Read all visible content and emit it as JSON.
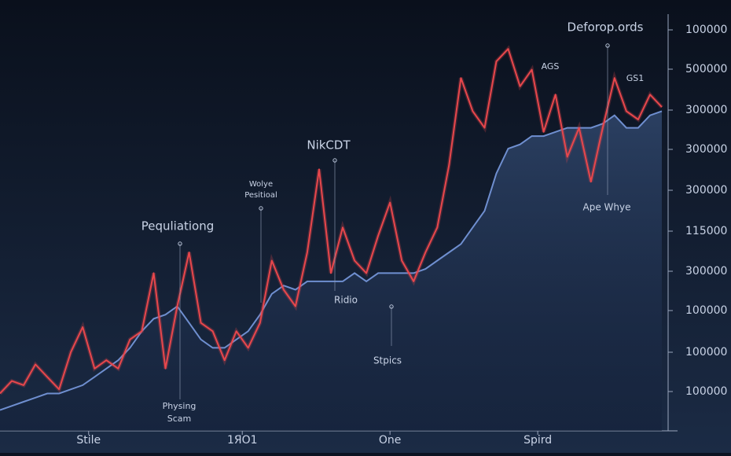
{
  "chart_data": {
    "type": "line",
    "annotations": [
      "Deforop.ords",
      "AGS",
      "GS1",
      "NikCDT",
      "Wolye",
      "Pesitioal",
      "Pequliationg",
      "Ape Whye",
      "Ridio",
      "Stpics",
      "Physing",
      "Scam"
    ],
    "y_axis_labels": [
      "100000",
      "500000",
      "300000",
      "300000",
      "300000",
      "115000",
      "300000",
      "100000",
      "100000",
      "100000"
    ],
    "x": [
      0,
      1,
      2,
      3,
      4,
      5,
      6,
      7,
      8,
      9,
      10,
      11,
      12,
      13,
      14,
      15,
      16,
      17,
      18,
      19,
      20,
      21,
      22,
      23,
      24,
      25,
      26,
      27,
      28,
      29,
      30,
      31,
      32,
      33,
      34,
      35,
      36,
      37,
      38,
      39,
      40,
      41,
      42,
      43,
      44,
      45,
      46,
      47,
      48,
      49,
      50,
      51,
      52,
      53,
      54,
      55,
      56
    ],
    "xlim": [
      0,
      56.4
    ],
    "ylim": [
      0,
      100
    ],
    "xticks": [
      {
        "value": 7.5,
        "label": "Stile"
      },
      {
        "value": 20.5,
        "label": "1ЯО1"
      },
      {
        "value": 33,
        "label": "One"
      },
      {
        "value": 45.5,
        "label": "Spird"
      }
    ],
    "series": [
      {
        "color": "#e8474c",
        "values": [
          9,
          12,
          11,
          16,
          13,
          10,
          19,
          25,
          15,
          17,
          15,
          22,
          24,
          38,
          15,
          30,
          43,
          26,
          24,
          17,
          24,
          20,
          26,
          41,
          34,
          30,
          43,
          63,
          38,
          49,
          41,
          38,
          47,
          55,
          41,
          36,
          43,
          49,
          64,
          85,
          77,
          73,
          89,
          92,
          83,
          87,
          72,
          81,
          66,
          73,
          60,
          73,
          85,
          77,
          75,
          81,
          78
        ]
      },
      {
        "color": "#6f8fd0",
        "values": [
          5,
          6,
          7,
          8,
          9,
          9,
          10,
          11,
          13,
          15,
          17,
          20,
          24,
          27,
          28,
          30,
          26,
          22,
          20,
          20,
          22,
          24,
          28,
          33,
          35,
          34,
          36,
          36,
          36,
          36,
          38,
          36,
          38,
          38,
          38,
          38,
          39,
          41,
          43,
          45,
          49,
          53,
          62,
          68,
          69,
          71,
          71,
          72,
          73,
          73,
          73,
          74,
          76,
          73,
          73,
          76,
          77
        ]
      }
    ]
  }
}
